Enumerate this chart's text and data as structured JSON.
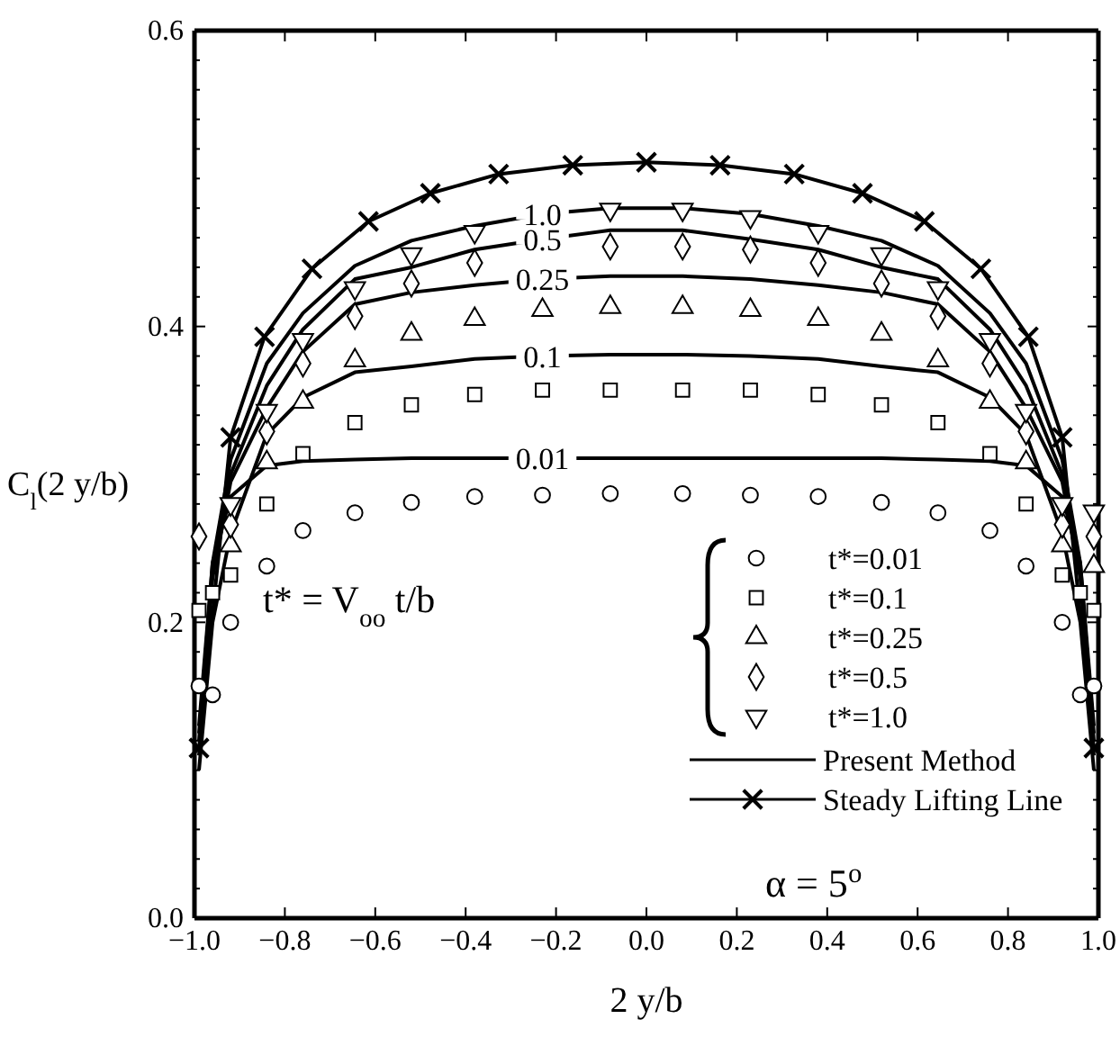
{
  "chart_data": {
    "type": "scatter",
    "xlabel": "2 y/b",
    "ylabel": "C$_{l}$(2 y/b)",
    "xlim": [
      -1,
      1
    ],
    "xticks": [
      {
        "value": -1,
        "label": "−1.0"
      },
      {
        "value": -0.8,
        "label": "−0.8"
      },
      {
        "value": -0.6,
        "label": "−0.6"
      },
      {
        "value": -0.4,
        "label": "−0.4"
      },
      {
        "value": -0.2,
        "label": "−0.2"
      },
      {
        "value": 0,
        "label": "0.0"
      },
      {
        "value": 0.2,
        "label": "0.2"
      },
      {
        "value": 0.4,
        "label": "0.4"
      },
      {
        "value": 0.6,
        "label": "0.6"
      },
      {
        "value": 0.8,
        "label": "0.8"
      },
      {
        "value": 1,
        "label": "1.0"
      }
    ],
    "ylim": [
      0,
      0.6
    ],
    "yticks": [
      {
        "value": 0,
        "label": "0.0"
      },
      {
        "value": 0.02,
        "label": null
      },
      {
        "value": 0.04,
        "label": null
      },
      {
        "value": 0.06,
        "label": null
      },
      {
        "value": 0.08,
        "label": null
      },
      {
        "value": 0.1,
        "label": null
      },
      {
        "value": 0.12,
        "label": null
      },
      {
        "value": 0.14,
        "label": null
      },
      {
        "value": 0.16,
        "label": null
      },
      {
        "value": 0.18,
        "label": null
      },
      {
        "value": 0.2,
        "label": "0.2"
      },
      {
        "value": 0.22,
        "label": null
      },
      {
        "value": 0.24,
        "label": null
      },
      {
        "value": 0.26,
        "label": null
      },
      {
        "value": 0.28,
        "label": null
      },
      {
        "value": 0.3,
        "label": null
      },
      {
        "value": 0.32,
        "label": null
      },
      {
        "value": 0.34,
        "label": null
      },
      {
        "value": 0.36,
        "label": null
      },
      {
        "value": 0.38,
        "label": null
      },
      {
        "value": 0.4,
        "label": "0.4"
      },
      {
        "value": 0.42,
        "label": null
      },
      {
        "value": 0.44,
        "label": null
      },
      {
        "value": 0.46,
        "label": null
      },
      {
        "value": 0.48,
        "label": null
      },
      {
        "value": 0.5,
        "label": null
      },
      {
        "value": 0.52,
        "label": null
      },
      {
        "value": 0.54,
        "label": null
      },
      {
        "value": 0.56,
        "label": null
      },
      {
        "value": 0.58,
        "label": null
      },
      {
        "value": 0.6,
        "label": "0.6"
      }
    ],
    "grid": false,
    "legend": "bottom right",
    "x": [
      -0.99,
      -0.96,
      -0.92,
      -0.84,
      -0.76,
      -0.645,
      -0.52,
      -0.38,
      -0.23,
      -0.08,
      0.08,
      0.23,
      0.38,
      0.52,
      0.645,
      0.76,
      0.84,
      0.92,
      0.96,
      0.99
    ],
    "series": [
      {
        "name": "0.01",
        "type": "line",
        "marker": "none",
        "color": "#000000",
        "x": [
          -0.99,
          -0.96,
          -0.92,
          -0.84,
          -0.76,
          -0.645,
          -0.52,
          -0.38,
          -0.23,
          -0.08,
          0.08,
          0.23,
          0.38,
          0.52,
          0.645,
          0.76,
          0.84,
          0.92,
          0.96,
          0.99
        ],
        "values": [
          0.12,
          0.24,
          0.285,
          0.306,
          0.309,
          0.31,
          0.311,
          0.311,
          0.311,
          0.311,
          0.311,
          0.311,
          0.311,
          0.311,
          0.31,
          0.309,
          0.306,
          0.285,
          0.24,
          0.12
        ]
      },
      {
        "name": "0.1",
        "type": "line",
        "marker": "none",
        "color": "#000000",
        "x": [
          -0.99,
          -0.96,
          -0.92,
          -0.84,
          -0.76,
          -0.645,
          -0.52,
          -0.38,
          -0.23,
          -0.08,
          0.08,
          0.23,
          0.38,
          0.52,
          0.645,
          0.76,
          0.84,
          0.92,
          0.96,
          0.99
        ],
        "values": [
          0.1,
          0.2,
          0.26,
          0.327,
          0.352,
          0.369,
          0.373,
          0.378,
          0.38,
          0.381,
          0.381,
          0.38,
          0.378,
          0.373,
          0.369,
          0.352,
          0.327,
          0.26,
          0.2,
          0.1
        ]
      },
      {
        "name": "0.25",
        "type": "line",
        "marker": "none",
        "color": "#000000",
        "x": [
          -0.99,
          -0.96,
          -0.92,
          -0.84,
          -0.76,
          -0.645,
          -0.52,
          -0.38,
          -0.23,
          -0.08,
          0.08,
          0.23,
          0.38,
          0.52,
          0.645,
          0.76,
          0.84,
          0.92,
          0.96,
          0.99
        ],
        "values": [
          0.11,
          0.23,
          0.295,
          0.345,
          0.383,
          0.415,
          0.423,
          0.428,
          0.432,
          0.434,
          0.434,
          0.432,
          0.428,
          0.423,
          0.415,
          0.383,
          0.345,
          0.295,
          0.23,
          0.11
        ]
      },
      {
        "name": "0.5",
        "type": "line",
        "marker": "none",
        "color": "#000000",
        "x": [
          -0.99,
          -0.96,
          -0.92,
          -0.84,
          -0.76,
          -0.645,
          -0.52,
          -0.38,
          -0.23,
          -0.08,
          0.08,
          0.23,
          0.38,
          0.52,
          0.645,
          0.76,
          0.84,
          0.92,
          0.96,
          0.99
        ],
        "values": [
          0.125,
          0.235,
          0.3,
          0.36,
          0.398,
          0.432,
          0.44,
          0.452,
          0.459,
          0.465,
          0.465,
          0.459,
          0.452,
          0.44,
          0.432,
          0.398,
          0.36,
          0.3,
          0.235,
          0.125
        ]
      },
      {
        "name": "1.0",
        "type": "line",
        "marker": "none",
        "color": "#000000",
        "x": [
          -0.99,
          -0.96,
          -0.92,
          -0.84,
          -0.76,
          -0.645,
          -0.52,
          -0.38,
          -0.23,
          -0.08,
          0.08,
          0.23,
          0.38,
          0.52,
          0.645,
          0.76,
          0.84,
          0.92,
          0.96,
          0.99
        ],
        "values": [
          0.13,
          0.24,
          0.31,
          0.375,
          0.409,
          0.441,
          0.458,
          0.468,
          0.476,
          0.48,
          0.48,
          0.476,
          0.468,
          0.458,
          0.441,
          0.409,
          0.375,
          0.31,
          0.24,
          0.13
        ]
      },
      {
        "name": "Steady Lifting Line",
        "type": "line",
        "marker": "cross",
        "color": "#000000",
        "x": [
          -0.99,
          -0.92,
          -0.845,
          -0.74,
          -0.615,
          -0.478,
          -0.327,
          -0.163,
          0,
          0.163,
          0.327,
          0.478,
          0.615,
          0.74,
          0.845,
          0.92,
          0.99
        ],
        "values": [
          0.115,
          0.325,
          0.393,
          0.439,
          0.471,
          0.49,
          0.503,
          0.509,
          0.511,
          0.509,
          0.503,
          0.49,
          0.471,
          0.439,
          0.393,
          0.325,
          0.115
        ]
      },
      {
        "name": "t*=0.01",
        "marker": "circle",
        "color": "#000000",
        "values": [
          0.157,
          0.151,
          0.2,
          0.238,
          0.262,
          0.274,
          0.281,
          0.285,
          0.286,
          0.287,
          0.287,
          0.286,
          0.285,
          0.281,
          0.274,
          0.262,
          0.238,
          0.2,
          0.151,
          0.157
        ]
      },
      {
        "name": "t*=0.1",
        "marker": "square",
        "color": "#000000",
        "values": [
          0.208,
          0.22,
          0.232,
          0.28,
          0.314,
          0.335,
          0.347,
          0.354,
          0.357,
          0.357,
          0.357,
          0.357,
          0.354,
          0.347,
          0.335,
          0.314,
          0.28,
          0.232,
          0.22,
          0.208
        ]
      },
      {
        "name": "t*=0.25",
        "marker": "triangle",
        "color": "#000000",
        "values": [
          null,
          null,
          0.252,
          0.308,
          0.349,
          0.377,
          0.395,
          0.405,
          0.411,
          0.413,
          0.413,
          0.411,
          0.405,
          0.395,
          0.377,
          0.349,
          0.308,
          0.252,
          null,
          0.238
        ]
      },
      {
        "name": "t*=0.5",
        "marker": "diamond",
        "color": "#000000",
        "values": [
          0.258,
          null,
          0.266,
          0.329,
          0.375,
          0.407,
          0.429,
          0.443,
          null,
          0.454,
          0.454,
          0.452,
          0.443,
          0.429,
          0.407,
          0.375,
          0.329,
          0.266,
          null,
          0.258
        ]
      },
      {
        "name": "t*=1.0",
        "marker": "triangle-down",
        "color": "#000000",
        "values": [
          null,
          null,
          0.28,
          0.343,
          0.391,
          0.426,
          0.449,
          0.464,
          null,
          0.479,
          0.479,
          0.474,
          0.464,
          0.449,
          0.426,
          0.391,
          0.343,
          0.28,
          null,
          0.275
        ]
      }
    ],
    "annotations": [
      "Present Method",
      "t* = V$_{oo}$ t/b",
      "α = 5$^{o}$"
    ]
  }
}
